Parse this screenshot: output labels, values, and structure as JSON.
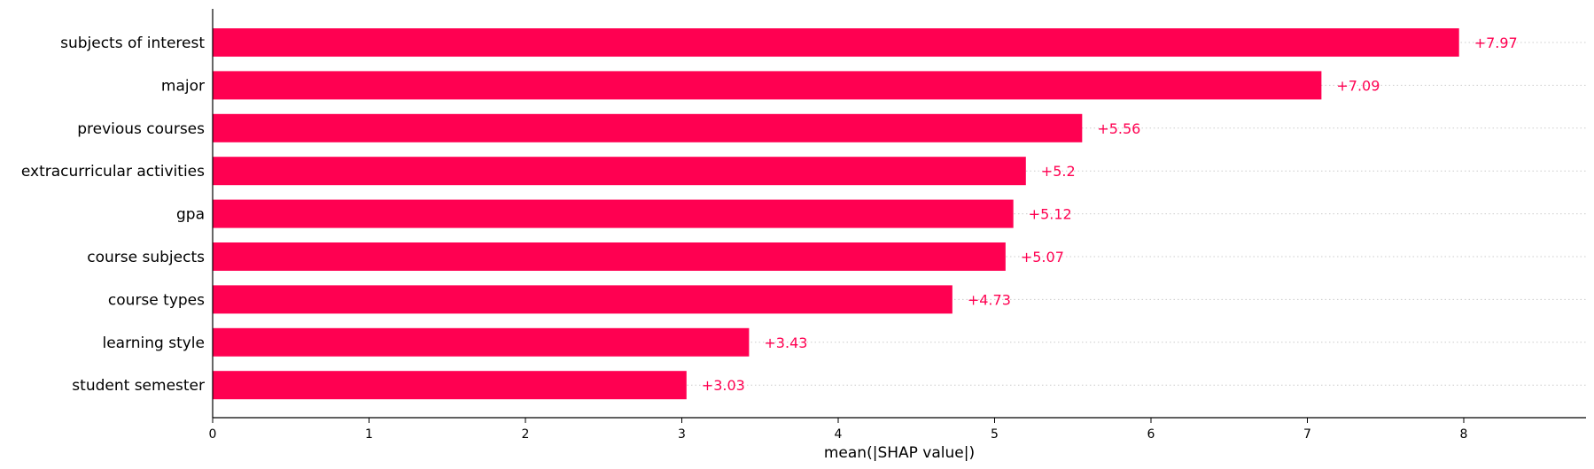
{
  "chart_data": {
    "type": "bar",
    "orientation": "horizontal",
    "categories": [
      "subjects of interest",
      "major",
      "previous courses",
      "extracurricular activities",
      "gpa",
      "course subjects",
      "course types",
      "learning style",
      "student semester"
    ],
    "values": [
      7.97,
      7.09,
      5.56,
      5.2,
      5.12,
      5.07,
      4.73,
      3.43,
      3.03
    ],
    "value_labels": [
      "+7.97",
      "+7.09",
      "+5.56",
      "+5.2",
      "+5.12",
      "+5.07",
      "+4.73",
      "+3.43",
      "+3.03"
    ],
    "xlabel": "mean(|SHAP value|)",
    "ylabel": "",
    "title": "",
    "xlim": [
      0,
      8.8
    ],
    "xticks": [
      0,
      1,
      2,
      3,
      4,
      5,
      6,
      7,
      8
    ],
    "grid": "dotted row guides",
    "colors": {
      "bar": "#ff0051",
      "label": "#ff0051",
      "axis": "#000000",
      "guide": "#cccccc"
    }
  }
}
